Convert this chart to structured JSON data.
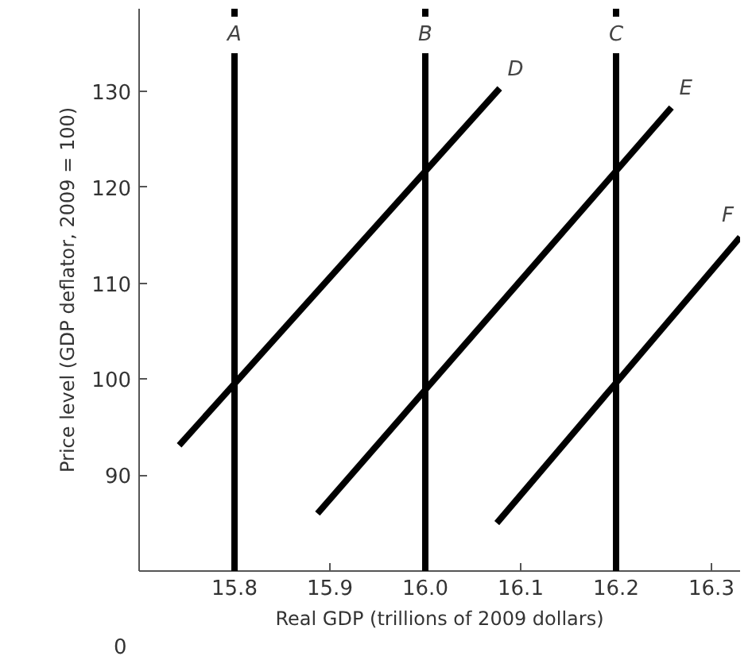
{
  "chart_data": {
    "type": "line",
    "xlabel": "Real GDP (trillions of 2009 dollars)",
    "ylabel": "Price level (GDP deflator, 2009 = 100)",
    "xlim": [
      15.7,
      16.33
    ],
    "ylim": [
      80,
      138.6
    ],
    "xticks": [
      15.8,
      15.9,
      {
        "value": 16.0,
        "label": "16.0"
      },
      16.1,
      16.2,
      16.3
    ],
    "yticks": [
      90,
      100,
      110,
      120,
      130
    ],
    "marker": "none",
    "line_style": "solid",
    "annotations": [
      "0"
    ],
    "ref_lines": [
      {
        "axis": "x",
        "value": 15.8,
        "label": "A",
        "color": "#000000"
      },
      {
        "axis": "x",
        "value": 16.0,
        "label": "B",
        "color": "#000000"
      },
      {
        "axis": "x",
        "value": 16.2,
        "label": "C",
        "color": "#000000"
      }
    ],
    "series": [
      {
        "name": "D",
        "color": "#000000",
        "x": [
          15.742,
          16.078
        ],
        "values": [
          93.1,
          130.3
        ]
      },
      {
        "name": "E",
        "color": "#000000",
        "x": [
          15.887,
          16.258
        ],
        "values": [
          86.0,
          128.3
        ]
      },
      {
        "name": "F",
        "color": "#000000",
        "x": [
          16.075,
          16.33
        ],
        "values": [
          85.0,
          114.8
        ]
      }
    ]
  }
}
